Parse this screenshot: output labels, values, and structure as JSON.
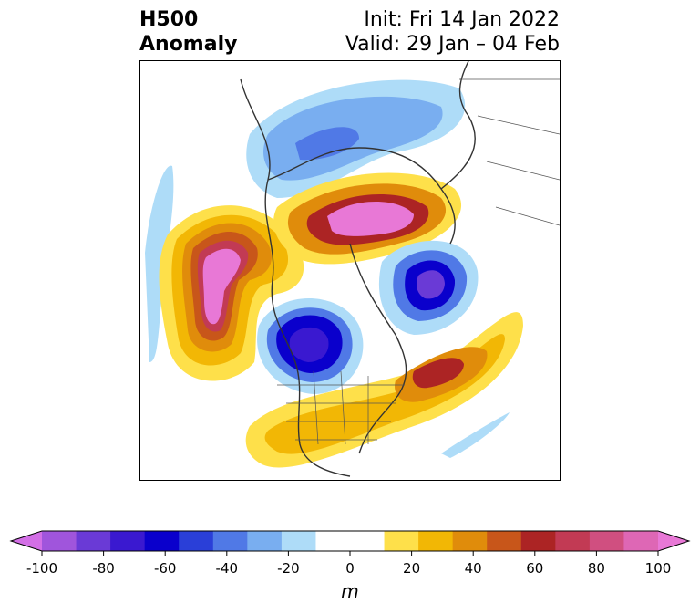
{
  "title": {
    "left_line1": "H500",
    "left_line2": "Anomaly",
    "right_line1": "Init: Fri 14 Jan 2022",
    "right_line2": "Valid: 29 Jan – 04 Feb"
  },
  "colorbar": {
    "unit": "m",
    "min": -100,
    "max": 100,
    "step": 10,
    "tick_labels": [
      "-100",
      "-80",
      "-60",
      "-40",
      "-20",
      "0",
      "20",
      "40",
      "60",
      "80",
      "100"
    ],
    "colors": [
      "#d36fe6",
      "#a055dc",
      "#6a3ad6",
      "#3a19d0",
      "#0a00cc",
      "#2a3fd8",
      "#5079e6",
      "#79aef0",
      "#aedcf8",
      "#ffffff",
      "#ffffff",
      "#fee04a",
      "#f2b705",
      "#e08c0b",
      "#c8561a",
      "#ac2424",
      "#c23a54",
      "#d04f80",
      "#de67b5",
      "#e878d6"
    ]
  },
  "map": {
    "projection": "north-polar-stereographic",
    "field": "500 hPa geopotential height anomaly",
    "features": [
      {
        "name": "north-pacific-ridge",
        "sign": "positive",
        "peak_value": 100
      },
      {
        "name": "arctic-europe-ridge",
        "sign": "positive",
        "peak_value": 90
      },
      {
        "name": "western-north-america-trough",
        "sign": "negative",
        "peak_value": -60
      },
      {
        "name": "siberia-trough",
        "sign": "negative",
        "peak_value": -60
      },
      {
        "name": "north-atlantic-ridge",
        "sign": "positive",
        "peak_value": 60
      },
      {
        "name": "eurasia-north-trough",
        "sign": "negative",
        "peak_value": -40
      }
    ]
  }
}
